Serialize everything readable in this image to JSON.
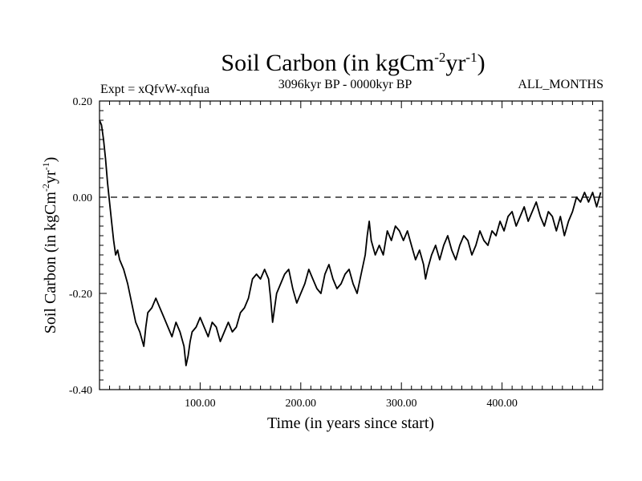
{
  "chart_data": {
    "type": "line",
    "title_main": "Soil Carbon (in kgCm",
    "title_sup1": "-2",
    "title_mid": "yr",
    "title_sup2": "-1",
    "title_end": ")",
    "subtitle_left": "Expt = xQfvW-xqfua",
    "subtitle_center": "3096kyr BP - 0000kyr BP",
    "subtitle_right": "ALL_MONTHS",
    "xlabel": "Time (in years since start)",
    "ylabel_main": "Soil Carbon (in kgCm",
    "ylabel_sup1": "-2",
    "ylabel_mid": "yr",
    "ylabel_sup2": "-1",
    "ylabel_end": ")",
    "xlim": [
      0,
      500
    ],
    "ylim": [
      -0.4,
      0.2
    ],
    "x_ticks": [
      {
        "value": 100,
        "label": "100.00"
      },
      {
        "value": 200,
        "label": "200.00"
      },
      {
        "value": 300,
        "label": "300.00"
      },
      {
        "value": 400,
        "label": "400.00"
      }
    ],
    "y_ticks": [
      {
        "value": 0.2,
        "label": "0.20"
      },
      {
        "value": 0.0,
        "label": "0.00"
      },
      {
        "value": -0.2,
        "label": "-0.20"
      },
      {
        "value": -0.4,
        "label": "-0.40"
      }
    ],
    "reference_line": 0.0,
    "series": [
      {
        "name": "Soil Carbon",
        "x": [
          0,
          2,
          4,
          6,
          8,
          10,
          12,
          14,
          16,
          18,
          20,
          24,
          28,
          32,
          36,
          40,
          44,
          46,
          48,
          52,
          56,
          60,
          64,
          68,
          72,
          76,
          80,
          84,
          86,
          88,
          90,
          92,
          96,
          100,
          104,
          108,
          112,
          116,
          120,
          124,
          128,
          132,
          136,
          140,
          144,
          148,
          152,
          156,
          160,
          164,
          168,
          170,
          172,
          176,
          180,
          184,
          188,
          192,
          196,
          200,
          204,
          208,
          212,
          216,
          220,
          224,
          228,
          232,
          236,
          240,
          244,
          248,
          252,
          256,
          260,
          264,
          266,
          268,
          270,
          274,
          278,
          282,
          286,
          290,
          294,
          298,
          302,
          306,
          310,
          314,
          318,
          322,
          324,
          326,
          330,
          334,
          338,
          342,
          346,
          350,
          354,
          358,
          362,
          366,
          370,
          374,
          378,
          382,
          386,
          390,
          394,
          398,
          402,
          406,
          410,
          414,
          418,
          422,
          426,
          430,
          434,
          438,
          442,
          446,
          450,
          454,
          458,
          462,
          466,
          470,
          474,
          478,
          482,
          486,
          490,
          494,
          498
        ],
        "y": [
          0.16,
          0.15,
          0.12,
          0.08,
          0.03,
          -0.01,
          -0.05,
          -0.09,
          -0.12,
          -0.11,
          -0.13,
          -0.15,
          -0.18,
          -0.22,
          -0.26,
          -0.28,
          -0.31,
          -0.27,
          -0.24,
          -0.23,
          -0.21,
          -0.23,
          -0.25,
          -0.27,
          -0.29,
          -0.26,
          -0.28,
          -0.31,
          -0.35,
          -0.33,
          -0.3,
          -0.28,
          -0.27,
          -0.25,
          -0.27,
          -0.29,
          -0.26,
          -0.27,
          -0.3,
          -0.28,
          -0.26,
          -0.28,
          -0.27,
          -0.24,
          -0.23,
          -0.21,
          -0.17,
          -0.16,
          -0.17,
          -0.15,
          -0.17,
          -0.21,
          -0.26,
          -0.2,
          -0.18,
          -0.16,
          -0.15,
          -0.19,
          -0.22,
          -0.2,
          -0.18,
          -0.15,
          -0.17,
          -0.19,
          -0.2,
          -0.16,
          -0.14,
          -0.17,
          -0.19,
          -0.18,
          -0.16,
          -0.15,
          -0.18,
          -0.2,
          -0.16,
          -0.12,
          -0.08,
          -0.05,
          -0.09,
          -0.12,
          -0.1,
          -0.12,
          -0.07,
          -0.09,
          -0.06,
          -0.07,
          -0.09,
          -0.07,
          -0.1,
          -0.13,
          -0.11,
          -0.14,
          -0.17,
          -0.15,
          -0.12,
          -0.1,
          -0.13,
          -0.1,
          -0.08,
          -0.11,
          -0.13,
          -0.1,
          -0.08,
          -0.09,
          -0.12,
          -0.1,
          -0.07,
          -0.09,
          -0.1,
          -0.07,
          -0.08,
          -0.05,
          -0.07,
          -0.04,
          -0.03,
          -0.06,
          -0.04,
          -0.02,
          -0.05,
          -0.03,
          -0.01,
          -0.04,
          -0.06,
          -0.03,
          -0.04,
          -0.07,
          -0.04,
          -0.08,
          -0.05,
          -0.03,
          0.0,
          -0.01,
          0.01,
          -0.01,
          0.01,
          -0.02,
          0.01
        ]
      }
    ]
  },
  "colors": {
    "line": "#000000",
    "background": "#ffffff"
  }
}
